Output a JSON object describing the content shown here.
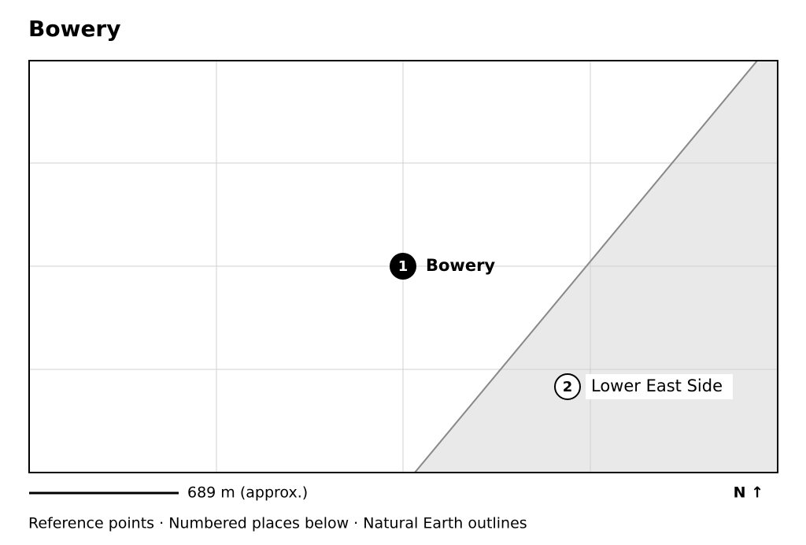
{
  "title": "Bowery",
  "places": [
    {
      "number": "1",
      "label": "Bowery"
    },
    {
      "number": "2",
      "label": "Lower East Side"
    }
  ],
  "scale_label": "689 m (approx.)",
  "north_label": "N ↑",
  "footer": "Reference points · Numbered places below · Natural Earth outlines"
}
